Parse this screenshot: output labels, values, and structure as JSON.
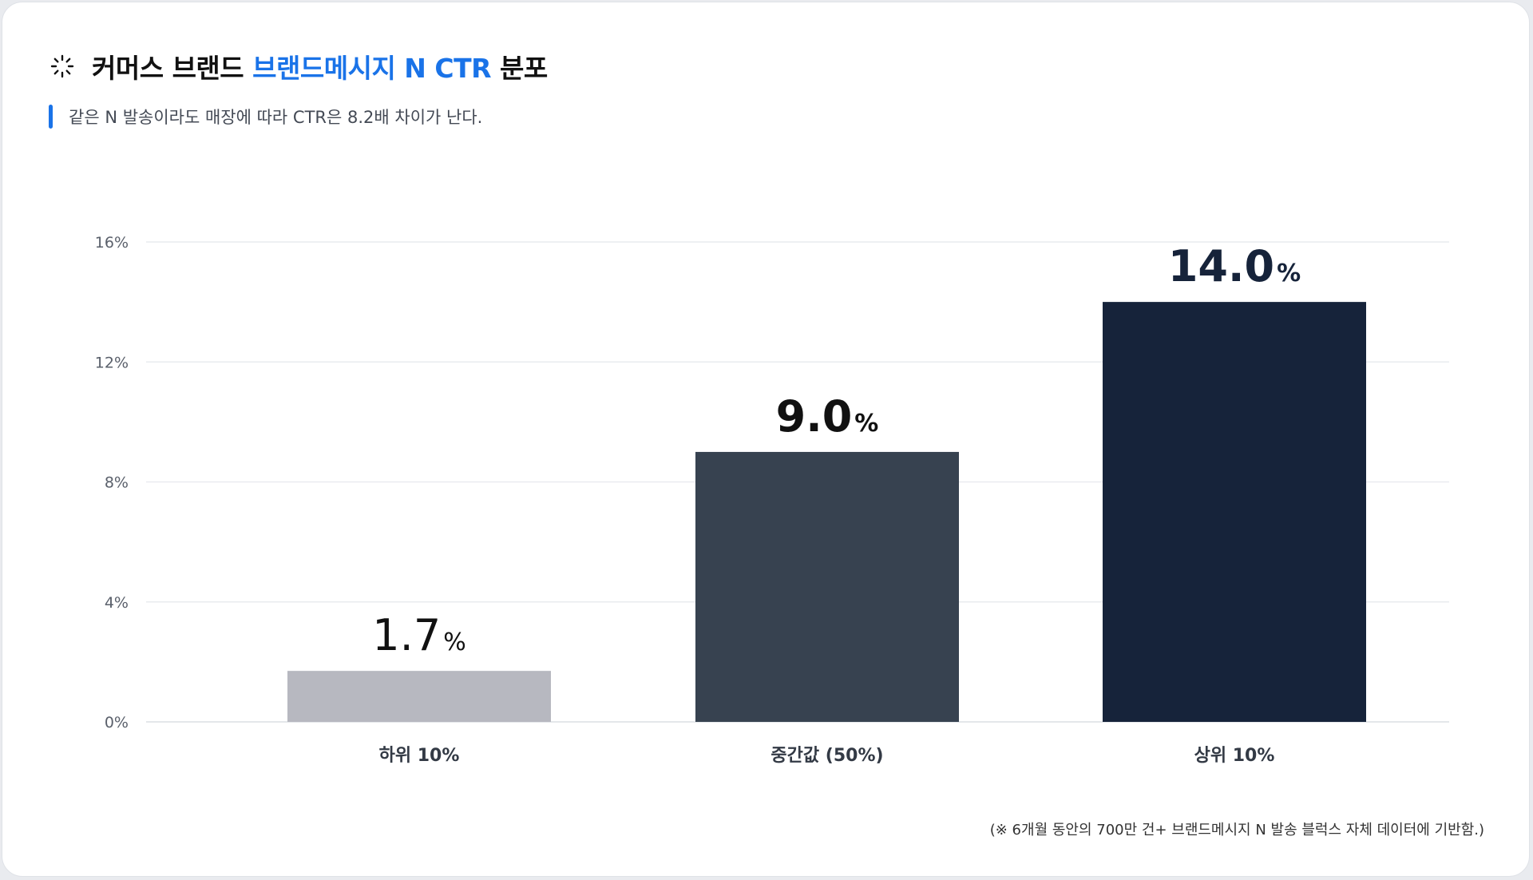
{
  "header": {
    "title_prefix": "커머스 브랜드 ",
    "title_highlight": "브랜드메시지 N CTR",
    "title_suffix": " 분포",
    "subtitle": "같은 N 발송이라도 매장에 따라 CTR은 8.2배 차이가 난다."
  },
  "footnote": "(※ 6개월 동안의 700만 건+ 브랜드메시지 N 발송 블럭스 자체 데이터에 기반함.)",
  "colors": {
    "accent": "#1a73e8",
    "bars": [
      "#b7b8c0",
      "#374250",
      "#16233a"
    ],
    "grid": "#e9ebef"
  },
  "icons": {
    "header": "spinner-icon"
  },
  "chart_data": {
    "type": "bar",
    "categories": [
      "하위 10%",
      "중간값 (50%)",
      "상위 10%"
    ],
    "values": [
      1.7,
      9.0,
      14.0
    ],
    "value_labels": [
      "1.7",
      "9.0",
      "14.0"
    ],
    "value_unit": "%",
    "ylim": [
      0,
      16
    ],
    "yticks": [
      0,
      4,
      8,
      12,
      16
    ],
    "ytick_labels": [
      "0%",
      "4%",
      "8%",
      "12%",
      "16%"
    ],
    "grid": true,
    "legend": "none"
  }
}
